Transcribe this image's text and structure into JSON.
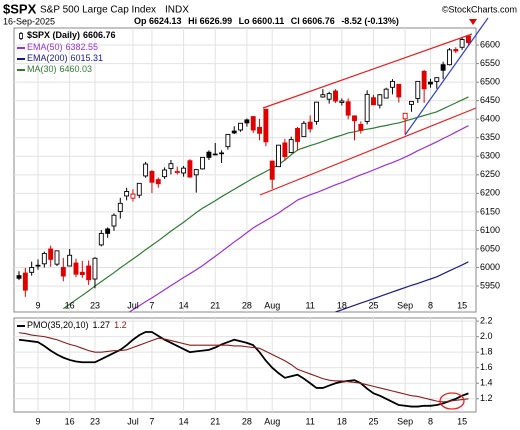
{
  "header": {
    "symbol": "$SPX",
    "name": "S&P 500 Large Cap Index",
    "exchange": "INDX",
    "credit": "©StockCharts.com",
    "date": "16-Sep-2025",
    "labels": {
      "open": "Op",
      "high": "Hi",
      "low": "Lo",
      "close": "Cl"
    },
    "change": {
      "value": -8.52,
      "label": "-8.52"
    },
    "change_pct": {
      "value": -0.13,
      "label": "(-0.13%)"
    }
  },
  "chart_data": [
    {
      "type": "candlestick",
      "name": "$SPX (Daily)",
      "categories": [
        null,
        null,
        null,
        "9",
        null,
        null,
        null,
        null,
        "16",
        null,
        null,
        null,
        "23",
        null,
        null,
        null,
        null,
        null,
        "Jul",
        null,
        null,
        "7",
        null,
        null,
        null,
        null,
        "14",
        null,
        null,
        null,
        null,
        "21",
        null,
        null,
        null,
        null,
        "28",
        null,
        null,
        null,
        "Aug",
        null,
        null,
        null,
        null,
        null,
        "11",
        null,
        null,
        null,
        null,
        "18",
        null,
        null,
        null,
        null,
        "25",
        null,
        null,
        null,
        null,
        "Sep",
        null,
        null,
        null,
        "8",
        null,
        null,
        null,
        null,
        "15",
        null
      ],
      "open": [
        5978,
        5985,
        5987,
        6005,
        6010,
        6050,
        6009,
        6000,
        6004,
        6012,
        5987,
        6004,
        5969,
        6061,
        6104,
        6112,
        6151,
        6193,
        6187,
        6195,
        6247,
        6259,
        6237,
        6245,
        6267,
        6256,
        6255,
        6288,
        6250,
        6266,
        6311,
        6305,
        6307,
        6326,
        6368,
        6371,
        6398,
        6407,
        6378,
        6427,
        6287,
        6272,
        6336,
        6310,
        6375,
        6353,
        6392,
        6394,
        6460,
        6454,
        6476,
        6445,
        6447,
        6409,
        6386,
        6394,
        6458,
        6438,
        6457,
        6486,
        6494,
        6401,
        6440,
        6456,
        6529,
        6500,
        6502,
        6547,
        6547,
        6588,
        6594,
        6624.13
      ],
      "high": [
        5990,
        5999,
        6016,
        6022,
        6043,
        6059,
        6045,
        6026,
        6050,
        6024,
        6018,
        6019,
        6028,
        6101,
        6108,
        6146,
        6188,
        6215,
        6211,
        6227,
        6285,
        6263,
        6243,
        6270,
        6290,
        6272,
        6274,
        6292,
        6266,
        6298,
        6316,
        6336,
        6316,
        6360,
        6381,
        6389,
        6402,
        6409,
        6401,
        6427,
        6288,
        6330,
        6347,
        6353,
        6379,
        6395,
        6410,
        6446,
        6481,
        6474,
        6481,
        6456,
        6456,
        6409,
        6394,
        6478,
        6466,
        6468,
        6485,
        6508,
        6494,
        6416,
        6449,
        6502,
        6533,
        6509,
        6513,
        6555,
        6592,
        6594,
        6619,
        6626.99
      ],
      "low": [
        5966,
        5921,
        5978,
        5994,
        6000,
        6002,
        6004,
        5963,
        6004,
        5974,
        5972,
        5953,
        5944,
        6057,
        6080,
        6099,
        6132,
        6181,
        6178,
        6187,
        6242,
        6201,
        6215,
        6239,
        6251,
        6251,
        6245,
        6242,
        6202,
        6264,
        6290,
        6303,
        6282,
        6318,
        6360,
        6366,
        6380,
        6363,
        6343,
        6327,
        6212,
        6272,
        6288,
        6308,
        6315,
        6352,
        6364,
        6385,
        6458,
        6442,
        6444,
        6437,
        6400,
        6343,
        6361,
        6386,
        6438,
        6429,
        6457,
        6467,
        6445,
        6360,
        6420,
        6444,
        6444,
        6485,
        6482,
        6508,
        6545,
        6578,
        6587,
        6600.11
      ],
      "close": [
        5971,
        5939,
        6000,
        6006,
        6038,
        6022,
        6045,
        5977,
        6033,
        5982,
        5981,
        5967,
        6025,
        6092,
        6092,
        6141,
        6173,
        6205,
        6198,
        6227,
        6279,
        6230,
        6226,
        6263,
        6280,
        6259,
        6268,
        6244,
        6264,
        6297,
        6297,
        6306,
        6309,
        6359,
        6363,
        6389,
        6390,
        6371,
        6362,
        6339,
        6238,
        6330,
        6299,
        6345,
        6340,
        6389,
        6374,
        6446,
        6466,
        6469,
        6449,
        6449,
        6411,
        6396,
        6370,
        6467,
        6439,
        6466,
        6481,
        6502,
        6460,
        6416,
        6448,
        6502,
        6482,
        6495,
        6512,
        6532,
        6587,
        6584,
        6615,
        6606.76
      ],
      "series": [
        {
          "name": "EMA(50)",
          "color": "#9b30d9",
          "values": [
            null,
            null,
            null,
            null,
            null,
            null,
            null,
            null,
            null,
            null,
            null,
            null,
            null,
            null,
            null,
            null,
            null,
            5875,
            5886,
            5897,
            5908,
            5918,
            5929,
            5940,
            5951,
            5962,
            5973,
            5983,
            5994,
            6005,
            6018,
            6030,
            6043,
            6056,
            6069,
            6081,
            6094,
            6107,
            6117,
            6127,
            6137,
            6147,
            6159,
            6170,
            6182,
            6189,
            6196,
            6202,
            6209,
            6216,
            6223,
            6229,
            6236,
            6243,
            6250,
            6256,
            6263,
            6270,
            6277,
            6283,
            6290,
            6298,
            6306,
            6315,
            6323,
            6331,
            6339,
            6348,
            6356,
            6365,
            6374,
            6382.55
          ]
        },
        {
          "name": "EMA(200)",
          "color": "#1a1a8c",
          "values": [
            null,
            null,
            null,
            null,
            null,
            null,
            null,
            null,
            null,
            null,
            null,
            null,
            null,
            null,
            null,
            null,
            null,
            null,
            null,
            null,
            null,
            null,
            null,
            null,
            null,
            null,
            null,
            null,
            null,
            null,
            null,
            null,
            null,
            null,
            null,
            null,
            null,
            null,
            null,
            null,
            null,
            null,
            null,
            null,
            null,
            null,
            null,
            null,
            null,
            null,
            5880,
            5886,
            5892,
            5898,
            5904,
            5910,
            5916,
            5922,
            5928,
            5934,
            5940,
            5946,
            5952,
            5957,
            5963,
            5969,
            5975,
            5983,
            5991,
            5999,
            6007,
            6015.31
          ]
        },
        {
          "name": "MA(30)",
          "color": "#2e7d32",
          "values": [
            null,
            null,
            null,
            null,
            null,
            null,
            null,
            5889,
            5901,
            5913,
            5925,
            5937,
            5950,
            5962,
            5974,
            5986,
            5999,
            6011,
            6023,
            6035,
            6048,
            6060,
            6072,
            6085,
            6098,
            6110,
            6122,
            6135,
            6148,
            6160,
            6170,
            6180,
            6191,
            6201,
            6211,
            6221,
            6231,
            6241,
            6250,
            6259,
            6268,
            6277,
            6290,
            6304,
            6317,
            6323,
            6329,
            6334,
            6340,
            6346,
            6352,
            6357,
            6363,
            6366,
            6370,
            6373,
            6376,
            6380,
            6383,
            6387,
            6390,
            6395,
            6400,
            6405,
            6410,
            6415,
            6420,
            6428,
            6436,
            6444,
            6452,
            6460.03
          ]
        }
      ],
      "ylim": [
        5880,
        6646
      ],
      "yticks": [
        5950,
        6000,
        6050,
        6100,
        6150,
        6200,
        6250,
        6300,
        6350,
        6400,
        6450,
        6500,
        6550,
        6600
      ],
      "grid": true
    },
    {
      "type": "line",
      "label": "PMO(35,20,10)",
      "categories": [
        null,
        null,
        null,
        "9",
        null,
        null,
        null,
        null,
        "16",
        null,
        null,
        null,
        "23",
        null,
        null,
        null,
        null,
        null,
        "Jul",
        null,
        null,
        "7",
        null,
        null,
        null,
        null,
        "14",
        null,
        null,
        null,
        null,
        "21",
        null,
        null,
        null,
        null,
        "28",
        null,
        null,
        null,
        "Aug",
        null,
        null,
        null,
        null,
        null,
        "11",
        null,
        null,
        null,
        null,
        "18",
        null,
        null,
        null,
        null,
        "25",
        null,
        null,
        null,
        null,
        "Sep",
        null,
        null,
        null,
        "8",
        null,
        null,
        null,
        null,
        "15",
        null
      ],
      "series": [
        {
          "name": "PMO",
          "color": "#000000",
          "values": [
            1.96,
            1.95,
            1.94,
            1.93,
            1.88,
            1.82,
            1.77,
            1.73,
            1.7,
            1.68,
            1.67,
            1.67,
            1.67,
            1.71,
            1.75,
            1.79,
            1.83,
            1.89,
            1.96,
            2.02,
            2.06,
            2.06,
            2.01,
            1.96,
            1.92,
            1.88,
            1.84,
            1.8,
            1.81,
            1.82,
            1.83,
            1.86,
            1.9,
            1.93,
            1.96,
            1.94,
            1.92,
            1.89,
            1.8,
            1.69,
            1.6,
            1.53,
            1.47,
            1.49,
            1.51,
            1.46,
            1.4,
            1.34,
            1.34,
            1.37,
            1.4,
            1.42,
            1.43,
            1.44,
            1.4,
            1.33,
            1.27,
            1.24,
            1.2,
            1.16,
            1.12,
            1.11,
            1.1,
            1.1,
            1.11,
            1.11,
            1.12,
            1.14,
            1.17,
            1.2,
            1.24,
            1.27
          ]
        },
        {
          "name": "Signal",
          "color": "#8b1a1a",
          "values": [
            2.05,
            2.04,
            2.02,
            2.01,
            2.0,
            1.98,
            1.96,
            1.93,
            1.9,
            1.88,
            1.85,
            1.82,
            1.8,
            1.8,
            1.81,
            1.82,
            1.82,
            1.83,
            1.86,
            1.89,
            1.92,
            1.95,
            1.98,
            1.97,
            1.95,
            1.93,
            1.91,
            1.89,
            1.89,
            1.89,
            1.89,
            1.89,
            1.89,
            1.89,
            1.88,
            1.88,
            1.87,
            1.86,
            1.85,
            1.81,
            1.77,
            1.73,
            1.69,
            1.64,
            1.58,
            1.55,
            1.52,
            1.49,
            1.46,
            1.44,
            1.43,
            1.43,
            1.42,
            1.41,
            1.4,
            1.38,
            1.36,
            1.34,
            1.32,
            1.3,
            1.28,
            1.26,
            1.24,
            1.23,
            1.21,
            1.19,
            1.17,
            1.16,
            1.17,
            1.18,
            1.19,
            1.2
          ]
        }
      ],
      "ylim": [
        1.03,
        2.24
      ],
      "yticks": [
        1.2,
        1.4,
        1.6,
        1.8,
        {
          "value": 2,
          "label": "2.0"
        },
        2.2
      ],
      "grid": true
    }
  ]
}
